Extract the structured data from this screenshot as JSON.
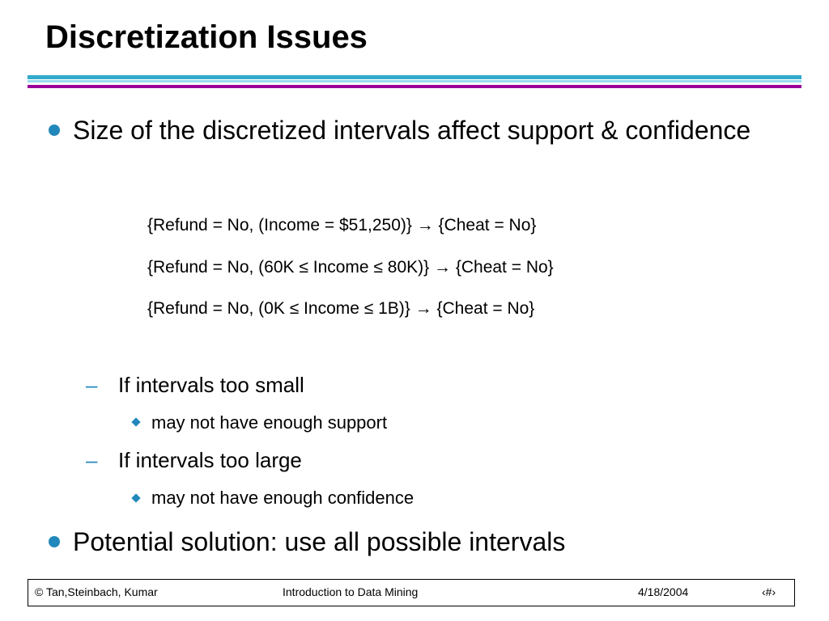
{
  "slide": {
    "title": "Discretization Issues",
    "bullets": [
      {
        "text": "Size of the discretized intervals affect support & confidence"
      },
      {
        "text": "Potential solution: use all possible intervals"
      }
    ],
    "rules": [
      "{Refund = No, (Income = $51,250)} → {Cheat = No}",
      "{Refund = No, (60K ≤ Income ≤ 80K)} → {Cheat = No}",
      "{Refund = No, (0K ≤ Income ≤ 1B)} → {Cheat = No}"
    ],
    "sub_bullets": [
      {
        "dash": "–",
        "text": "If intervals too small",
        "detail": "may not have enough support"
      },
      {
        "dash": "–",
        "text": "If intervals too large",
        "detail": "may not have enough confidence"
      }
    ],
    "footer": {
      "copyright": "© Tan,Steinbach, Kumar",
      "course": "Introduction to Data Mining",
      "date": "4/18/2004",
      "page": "‹#›"
    },
    "colors": {
      "accent_blue": "#2288bb",
      "rule_teal": "#33aacc",
      "rule_cyan": "#99ddee",
      "rule_purple": "#990099"
    }
  }
}
